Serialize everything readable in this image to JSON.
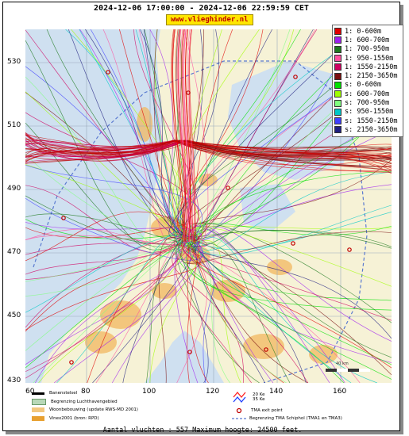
{
  "header": {
    "time_range": "2024-12-06 17:00:00 - 2024-12-06 22:59:59 CET",
    "site": "www.vlieghinder.nl"
  },
  "axes": {
    "y_ticks": [
      "530",
      "510",
      "490",
      "470",
      "450",
      "430"
    ],
    "x_ticks": [
      "60",
      "80",
      "100",
      "120",
      "140",
      "160"
    ]
  },
  "legend": [
    {
      "label": "1: 0-600m",
      "color": "#e00000"
    },
    {
      "label": "1: 600-700m",
      "color": "#a020f0"
    },
    {
      "label": "1: 700-950m",
      "color": "#1e7a1e"
    },
    {
      "label": "1: 950-1550m",
      "color": "#ff4fa0"
    },
    {
      "label": "1: 1550-2150m",
      "color": "#d00060"
    },
    {
      "label": "1: 2150-3650m",
      "color": "#7a1010"
    },
    {
      "label": "s: 0-600m",
      "color": "#00e000"
    },
    {
      "label": "s: 600-700m",
      "color": "#a0ff00"
    },
    {
      "label": "s: 700-950m",
      "color": "#80ff80"
    },
    {
      "label": "s: 950-1550m",
      "color": "#00c8c8"
    },
    {
      "label": "s: 1550-2150m",
      "color": "#4040ff"
    },
    {
      "label": "s: 2150-3650m",
      "color": "#202080"
    }
  ],
  "bottom_legend": {
    "runway": "Banenstelsel",
    "airport_boundary": "Begrenzing Luchthavengebied",
    "housing": "Woonbebouwing (update RWS-MD 2001)",
    "vinex": "Vinex2001 (bron: RPD)",
    "noise_20": "20 Ke",
    "noise_35": "35 Ke",
    "tma_exit": "TMA exit point",
    "tma_boundary": "Begrenzing TMA Schiphol  (TMA1 en TMA3)"
  },
  "scale": "40 km",
  "footer": "Aantal vluchten : 557 Maximum hoogte: 24500 feet."
}
